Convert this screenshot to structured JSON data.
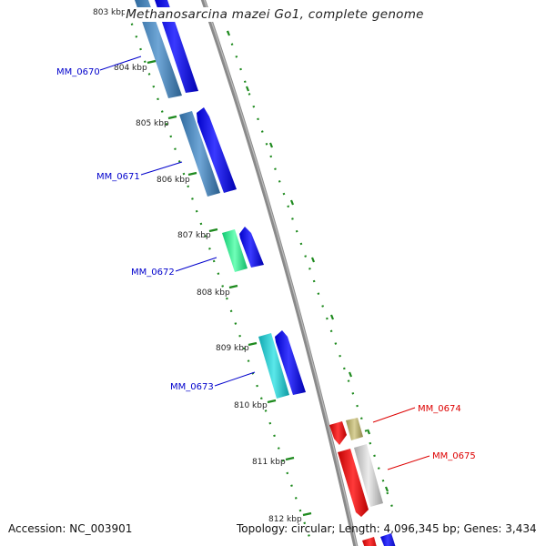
{
  "title": "Methanosarcina mazei Go1, complete genome",
  "footer": {
    "accession_text": "Accession: NC_003901",
    "summary_text": "Topology: circular; Length: 4,096,345 bp; Genes: 3,434"
  },
  "ticks": [
    {
      "label": "803 kbp"
    },
    {
      "label": "804 kbp"
    },
    {
      "label": "805 kbp"
    },
    {
      "label": "806 kbp"
    },
    {
      "label": "807 kbp"
    },
    {
      "label": "808 kbp"
    },
    {
      "label": "809 kbp"
    },
    {
      "label": "810 kbp"
    },
    {
      "label": "811 kbp"
    },
    {
      "label": "812 kbp"
    }
  ],
  "genes": [
    {
      "name": "MM_0670",
      "strand": "left"
    },
    {
      "name": "MM_0671",
      "strand": "left"
    },
    {
      "name": "MM_0672",
      "strand": "left"
    },
    {
      "name": "MM_0673",
      "strand": "left"
    },
    {
      "name": "MM_0674",
      "strand": "right"
    },
    {
      "name": "MM_0675",
      "strand": "right"
    }
  ],
  "colors": {
    "backbone": "#8a8a8a",
    "tick_green": "#1e8a1e",
    "cds_blue": "#0000e6",
    "left_label": "#0000cc",
    "right_label": "#dd0000",
    "gene_red": "#ee0000",
    "gene_khaki": "#b8b070",
    "gene_grey": "#c8c8c8",
    "steelblue": "#4a82b4",
    "springgreen": "#22ee88",
    "turquoise": "#18c8cc"
  }
}
